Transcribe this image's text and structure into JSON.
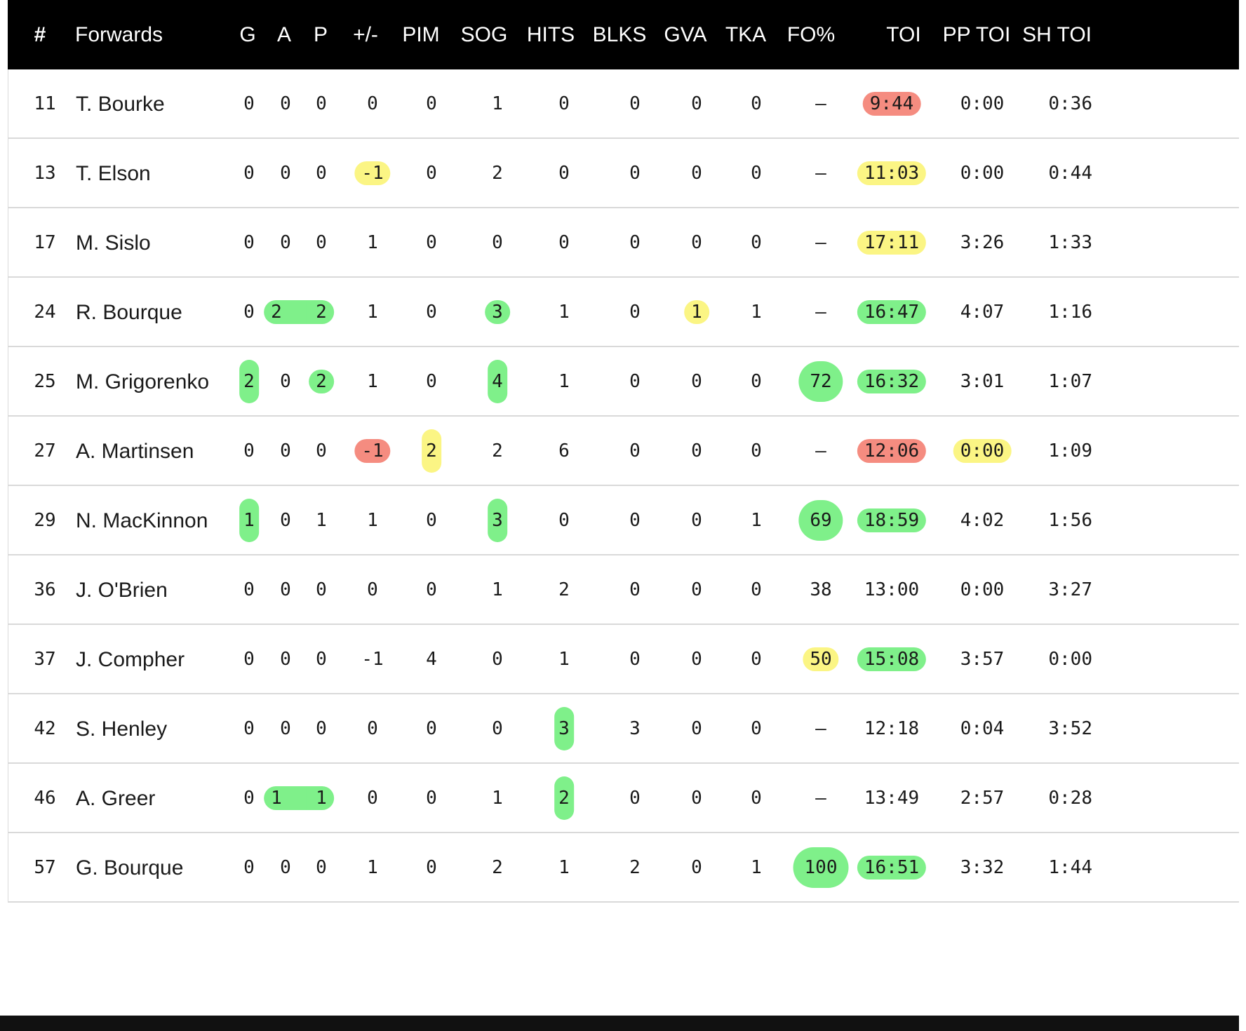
{
  "columns": {
    "number": "#",
    "name": "Forwards",
    "g": "G",
    "a": "A",
    "p": "P",
    "pm": "+/-",
    "pim": "PIM",
    "sog": "SOG",
    "hits": "HITS",
    "blks": "BLKS",
    "gva": "GVA",
    "tka": "TKA",
    "fo": "FO%",
    "toi": "TOI",
    "pptoi": "PP TOI",
    "shtoi": "SH TOI"
  },
  "highlight_colors": {
    "green": "#7ff08a",
    "yellow": "#fbf584",
    "red": "#f58c80"
  },
  "rows": [
    {
      "number": "11",
      "name": "T. Bourke",
      "g": "0",
      "a": "0",
      "p": "0",
      "pm": "0",
      "pim": "0",
      "sog": "1",
      "hits": "0",
      "blks": "0",
      "gva": "0",
      "tka": "0",
      "fo": "–",
      "toi": "9:44",
      "pptoi": "0:00",
      "shtoi": "0:36"
    },
    {
      "number": "13",
      "name": "T. Elson",
      "g": "0",
      "a": "0",
      "p": "0",
      "pm": "-1",
      "pim": "0",
      "sog": "2",
      "hits": "0",
      "blks": "0",
      "gva": "0",
      "tka": "0",
      "fo": "–",
      "toi": "11:03",
      "pptoi": "0:00",
      "shtoi": "0:44"
    },
    {
      "number": "17",
      "name": "M. Sislo",
      "g": "0",
      "a": "0",
      "p": "0",
      "pm": "1",
      "pim": "0",
      "sog": "0",
      "hits": "0",
      "blks": "0",
      "gva": "0",
      "tka": "0",
      "fo": "–",
      "toi": "17:11",
      "pptoi": "3:26",
      "shtoi": "1:33"
    },
    {
      "number": "24",
      "name": "R. Bourque",
      "g": "0",
      "a": "2",
      "p": "2",
      "pm": "1",
      "pim": "0",
      "sog": "3",
      "hits": "1",
      "blks": "0",
      "gva": "1",
      "tka": "1",
      "fo": "–",
      "toi": "16:47",
      "pptoi": "4:07",
      "shtoi": "1:16"
    },
    {
      "number": "25",
      "name": "M. Grigorenko",
      "g": "2",
      "a": "0",
      "p": "2",
      "pm": "1",
      "pim": "0",
      "sog": "4",
      "hits": "1",
      "blks": "0",
      "gva": "0",
      "tka": "0",
      "fo": "72",
      "toi": "16:32",
      "pptoi": "3:01",
      "shtoi": "1:07"
    },
    {
      "number": "27",
      "name": "A. Martinsen",
      "g": "0",
      "a": "0",
      "p": "0",
      "pm": "-1",
      "pim": "2",
      "sog": "2",
      "hits": "6",
      "blks": "0",
      "gva": "0",
      "tka": "0",
      "fo": "–",
      "toi": "12:06",
      "pptoi": "0:00",
      "shtoi": "1:09"
    },
    {
      "number": "29",
      "name": "N. MacKinnon",
      "g": "1",
      "a": "0",
      "p": "1",
      "pm": "1",
      "pim": "0",
      "sog": "3",
      "hits": "0",
      "blks": "0",
      "gva": "0",
      "tka": "1",
      "fo": "69",
      "toi": "18:59",
      "pptoi": "4:02",
      "shtoi": "1:56"
    },
    {
      "number": "36",
      "name": "J. O'Brien",
      "g": "0",
      "a": "0",
      "p": "0",
      "pm": "0",
      "pim": "0",
      "sog": "1",
      "hits": "2",
      "blks": "0",
      "gva": "0",
      "tka": "0",
      "fo": "38",
      "toi": "13:00",
      "pptoi": "0:00",
      "shtoi": "3:27"
    },
    {
      "number": "37",
      "name": "J. Compher",
      "g": "0",
      "a": "0",
      "p": "0",
      "pm": "-1",
      "pim": "4",
      "sog": "0",
      "hits": "1",
      "blks": "0",
      "gva": "0",
      "tka": "0",
      "fo": "50",
      "toi": "15:08",
      "pptoi": "3:57",
      "shtoi": "0:00"
    },
    {
      "number": "42",
      "name": "S. Henley",
      "g": "0",
      "a": "0",
      "p": "0",
      "pm": "0",
      "pim": "0",
      "sog": "0",
      "hits": "3",
      "blks": "3",
      "gva": "0",
      "tka": "0",
      "fo": "–",
      "toi": "12:18",
      "pptoi": "0:04",
      "shtoi": "3:52"
    },
    {
      "number": "46",
      "name": "A. Greer",
      "g": "0",
      "a": "1",
      "p": "1",
      "pm": "0",
      "pim": "0",
      "sog": "1",
      "hits": "2",
      "blks": "0",
      "gva": "0",
      "tka": "0",
      "fo": "–",
      "toi": "13:49",
      "pptoi": "2:57",
      "shtoi": "0:28"
    },
    {
      "number": "57",
      "name": "G. Bourque",
      "g": "0",
      "a": "0",
      "p": "0",
      "pm": "1",
      "pim": "0",
      "sog": "2",
      "hits": "1",
      "blks": "2",
      "gva": "0",
      "tka": "1",
      "fo": "100",
      "toi": "16:51",
      "pptoi": "3:32",
      "shtoi": "1:44"
    }
  ],
  "highlights": [
    {
      "row": 0,
      "col": "toi",
      "color": "red"
    },
    {
      "row": 1,
      "col": "pm",
      "color": "yellow"
    },
    {
      "row": 1,
      "col": "toi",
      "color": "yellow"
    },
    {
      "row": 2,
      "col": "toi",
      "color": "yellow"
    },
    {
      "row": 3,
      "col": "a",
      "color": "green",
      "join": "p"
    },
    {
      "row": 3,
      "col": "p",
      "color": "green",
      "join": "a"
    },
    {
      "row": 3,
      "col": "sog",
      "color": "green"
    },
    {
      "row": 3,
      "col": "gva",
      "color": "yellow"
    },
    {
      "row": 3,
      "col": "toi",
      "color": "green"
    },
    {
      "row": 4,
      "col": "g",
      "color": "green",
      "tall": true
    },
    {
      "row": 4,
      "col": "p",
      "color": "green"
    },
    {
      "row": 4,
      "col": "sog",
      "color": "green",
      "tall": true
    },
    {
      "row": 4,
      "col": "fo",
      "color": "green",
      "big": true
    },
    {
      "row": 4,
      "col": "toi",
      "color": "green"
    },
    {
      "row": 5,
      "col": "pm",
      "color": "red"
    },
    {
      "row": 5,
      "col": "pim",
      "color": "yellow",
      "tall": true
    },
    {
      "row": 5,
      "col": "toi",
      "color": "red"
    },
    {
      "row": 5,
      "col": "pptoi",
      "color": "yellow"
    },
    {
      "row": 6,
      "col": "g",
      "color": "green",
      "tall": true
    },
    {
      "row": 6,
      "col": "sog",
      "color": "green",
      "tall": true
    },
    {
      "row": 6,
      "col": "fo",
      "color": "green",
      "big": true
    },
    {
      "row": 6,
      "col": "toi",
      "color": "green"
    },
    {
      "row": 8,
      "col": "fo",
      "color": "yellow"
    },
    {
      "row": 8,
      "col": "toi",
      "color": "green"
    },
    {
      "row": 9,
      "col": "hits",
      "color": "green",
      "tall": true
    },
    {
      "row": 10,
      "col": "a",
      "color": "green",
      "join": "p"
    },
    {
      "row": 10,
      "col": "p",
      "color": "green",
      "join": "a"
    },
    {
      "row": 10,
      "col": "hits",
      "color": "green",
      "tall": true
    },
    {
      "row": 11,
      "col": "fo",
      "color": "green",
      "big": true
    },
    {
      "row": 11,
      "col": "toi",
      "color": "green"
    }
  ]
}
